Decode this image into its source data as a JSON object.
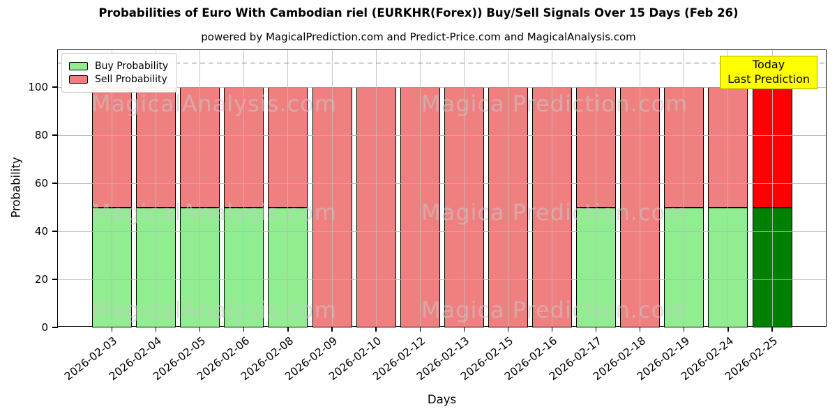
{
  "header": {
    "title": "Probabilities of Euro With Cambodian riel (EURKHR(Forex)) Buy/Sell Signals Over 15 Days (Feb 26)",
    "subtitle": "powered by MagicalPrediction.com and Predict-Price.com and MagicalAnalysis.com"
  },
  "legend": {
    "items": [
      {
        "label": "Buy Probability",
        "color": "#90EE90"
      },
      {
        "label": "Sell Probability",
        "color": "#F08080"
      }
    ]
  },
  "annotation": {
    "line1": "Today",
    "line2": "Last Prediction",
    "bg_color": "#FFFF00",
    "border_color": "#A8A800"
  },
  "watermark": {
    "left_text": "MagicalAnalysis.com",
    "right_text": "Magica Prediction.com"
  },
  "axes": {
    "xlabel": "Days",
    "ylabel": "Probability",
    "yticks": [
      0,
      20,
      40,
      60,
      80,
      100
    ]
  },
  "chart_data": {
    "type": "bar",
    "stacked": true,
    "title": "Probabilities of Euro With Cambodian riel (EURKHR(Forex)) Buy/Sell Signals Over 15 Days (Feb 26)",
    "xlabel": "Days",
    "ylabel": "Probability",
    "ylim": [
      0,
      115.4
    ],
    "grid": true,
    "legend_position": "upper left",
    "cutoff_dashed_line_y": 110,
    "categories": [
      "2026-02-03",
      "2026-02-04",
      "2026-02-05",
      "2026-02-06",
      "2026-02-08",
      "2026-02-09",
      "2026-02-10",
      "2026-02-12",
      "2026-02-13",
      "2026-02-15",
      "2026-02-16",
      "2026-02-17",
      "2026-02-18",
      "2026-02-19",
      "2026-02-24",
      "2026-02-25"
    ],
    "series": [
      {
        "name": "Buy Probability",
        "color": "#90EE90",
        "today_color": "#008000",
        "values": [
          50,
          50,
          50,
          50,
          50,
          0,
          0,
          0,
          0,
          0,
          0,
          50,
          0,
          50,
          50,
          50
        ]
      },
      {
        "name": "Sell Probability",
        "color": "#F08080",
        "today_color": "#FF0000",
        "values": [
          50,
          50,
          50,
          50,
          50,
          100,
          100,
          100,
          100,
          100,
          100,
          50,
          100,
          50,
          50,
          50
        ]
      }
    ],
    "today_index": 15,
    "bar_edge_color": "#000000"
  }
}
